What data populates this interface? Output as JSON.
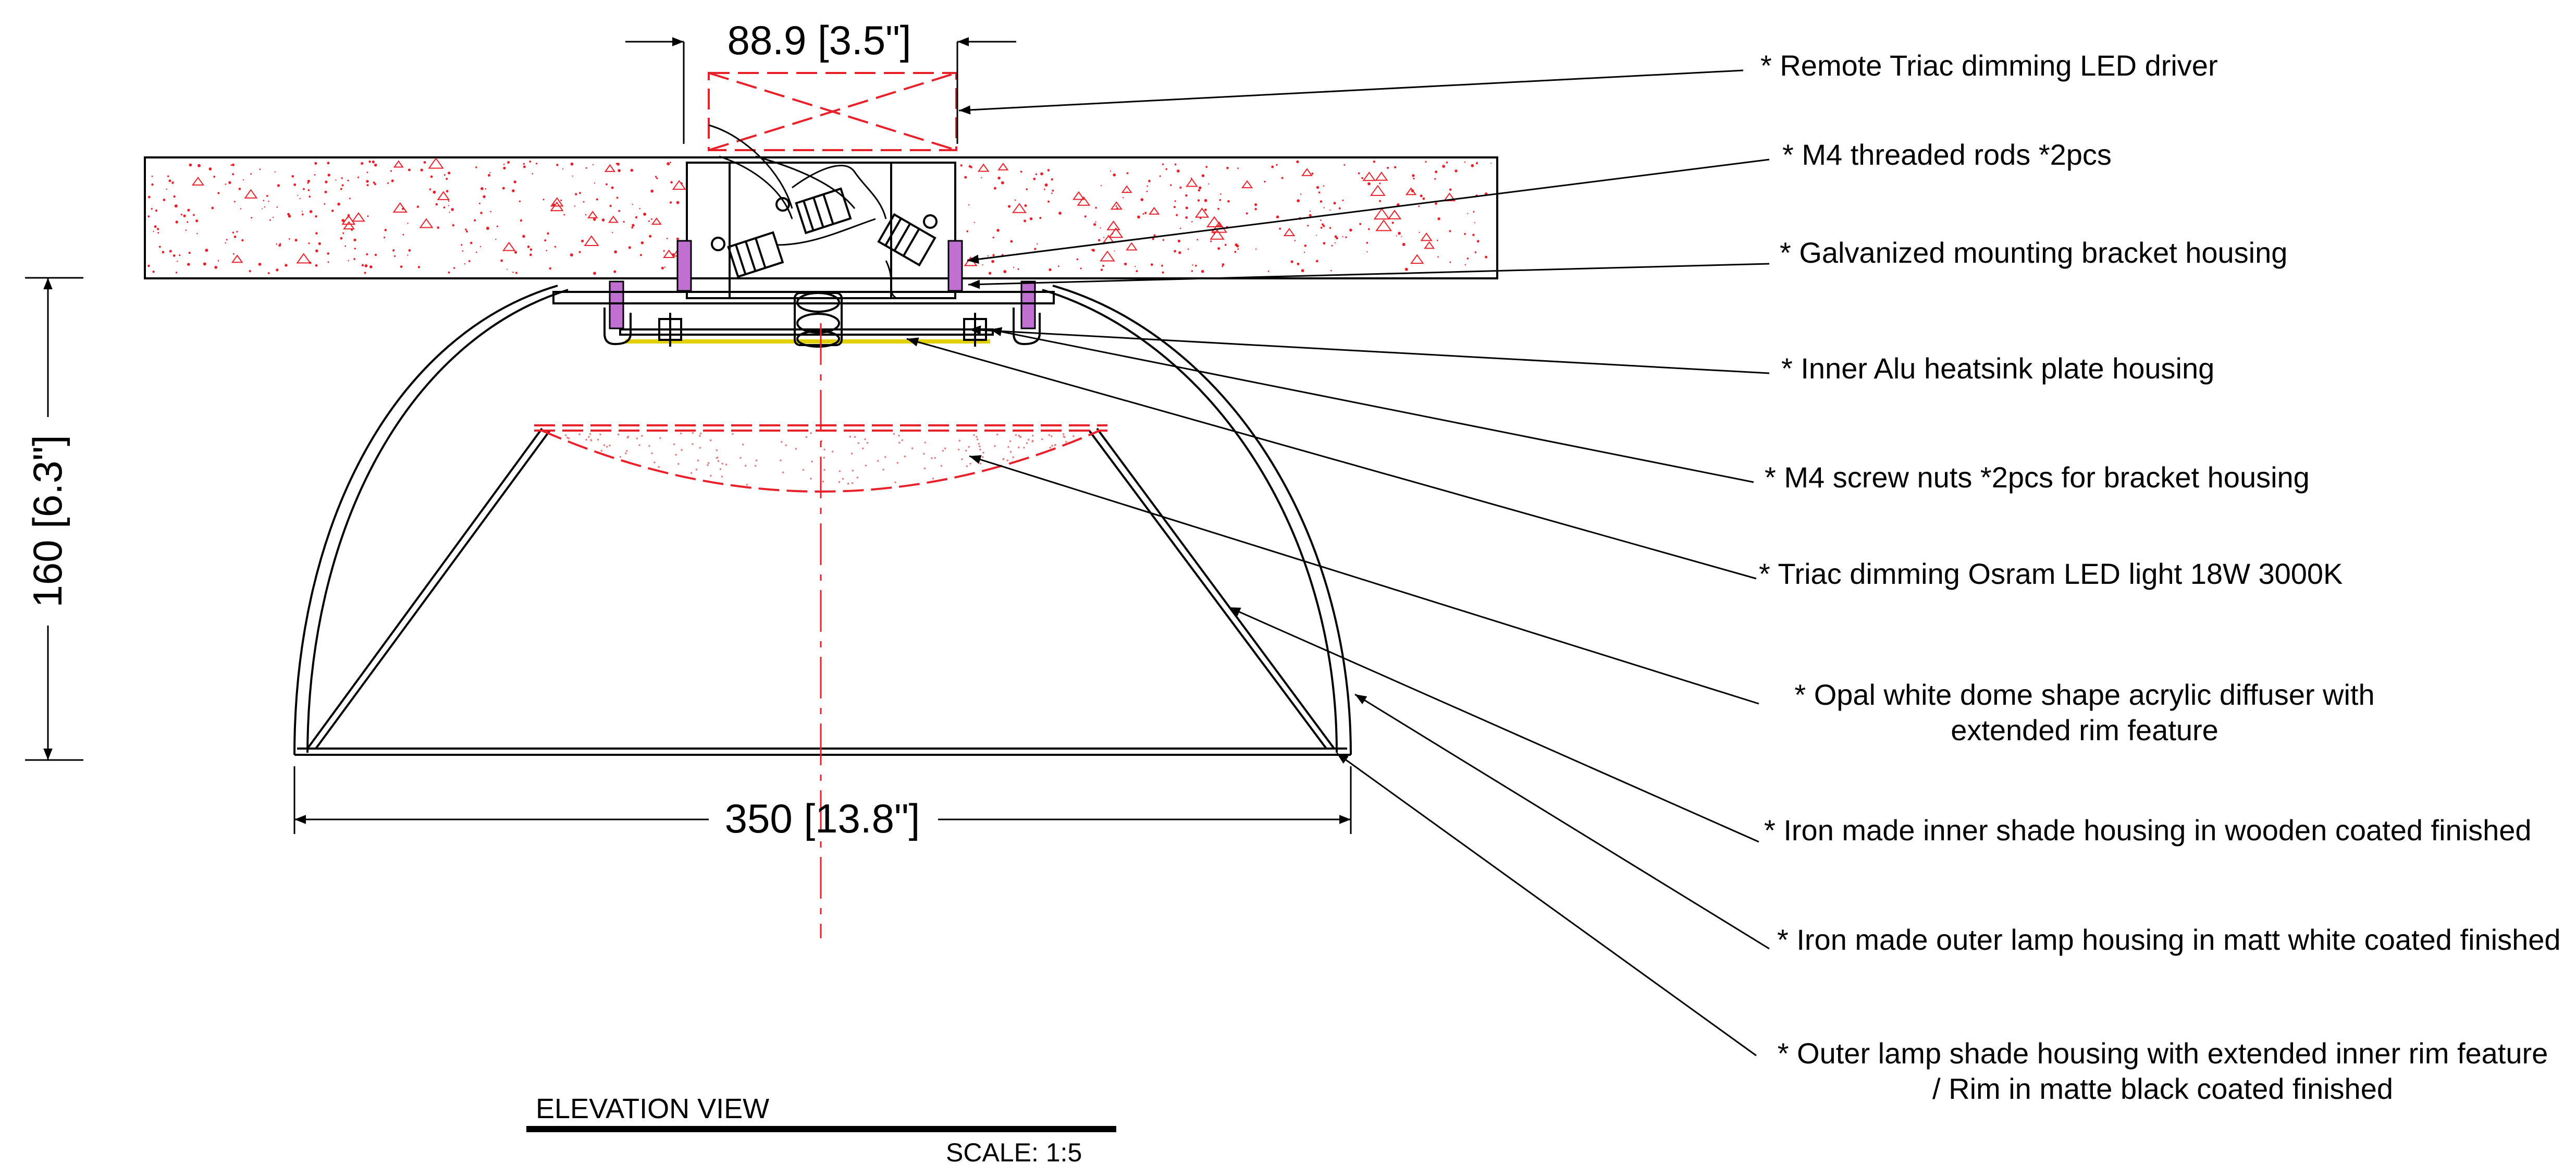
{
  "dimensions": {
    "top_width": "88.9 [3.5\"]",
    "height": "160 [6.3\"]",
    "bottom_width": "350 [13.8\"]"
  },
  "callouts": {
    "driver": "* Remote Triac dimming LED driver",
    "rods": "* M4 threaded rods  *2pcs",
    "bracket": "* Galvanized mounting bracket housing",
    "heatsink": "* Inner Alu heatsink plate housing",
    "nuts": "* M4 screw nuts  *2pcs for bracket housing",
    "led": "* Triac dimming Osram LED light 18W 3000K",
    "diffuser_l1": "* Opal white dome shape acrylic diffuser with",
    "diffuser_l2": "extended rim feature",
    "inner_shade": "* Iron made inner shade housing in wooden coated finished",
    "outer_housing": "* Iron made outer lamp housing in matt white coated finished",
    "outer_shade_l1": "* Outer lamp shade housing with extended inner rim feature",
    "outer_shade_l2": "/ Rim in matte black coated finished"
  },
  "title_block": {
    "view": "ELEVATION VIEW",
    "scale": "SCALE: 1:5"
  },
  "colors": {
    "line": "#000000",
    "hidden": "#e8202a",
    "concrete": "#e8202a",
    "rod": "#b040c0",
    "led": "#e0d000",
    "diffuser_dots": "#e08080"
  }
}
